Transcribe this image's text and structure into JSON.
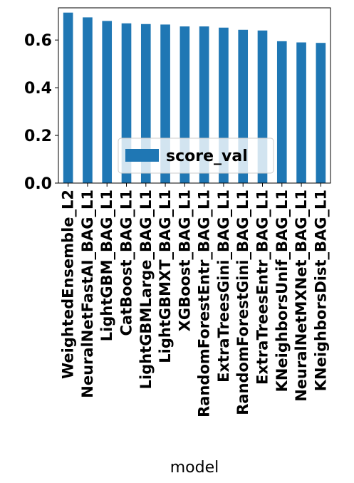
{
  "chart_data": {
    "type": "bar",
    "categories": [
      "WeightedEnsemble_L2",
      "NeuralNetFastAI_BAG_L1",
      "LightGBM_BAG_L1",
      "CatBoost_BAG_L1",
      "LightGBMLarge_BAG_L1",
      "LightGBMXT_BAG_L1",
      "XGBoost_BAG_L1",
      "RandomForestEntr_BAG_L1",
      "ExtraTreesGini_BAG_L1",
      "RandomForestGini_BAG_L1",
      "ExtraTreesEntr_BAG_L1",
      "KNeighborsUnif_BAG_L1",
      "NeuralNetMXNet_BAG_L1",
      "KNeighborsDist_BAG_L1"
    ],
    "series": [
      {
        "name": "score_val",
        "values": [
          0.715,
          0.695,
          0.68,
          0.67,
          0.667,
          0.665,
          0.657,
          0.657,
          0.652,
          0.643,
          0.64,
          0.595,
          0.59,
          0.588
        ],
        "color": "#1f77b4"
      }
    ],
    "xlabel": "model",
    "ylabel": "",
    "ylim": [
      0,
      0.735
    ],
    "yticks": [
      0.0,
      0.2,
      0.4,
      0.6
    ],
    "ytick_labels": [
      "0.0",
      "0.2",
      "0.4",
      "0.6"
    ],
    "legend_position": "lower-center",
    "grid": false
  }
}
